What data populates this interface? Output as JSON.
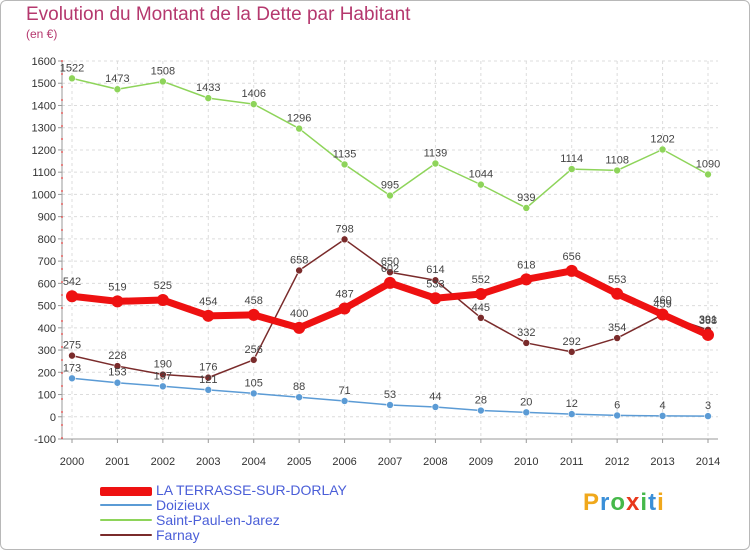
{
  "title": "Evolution du Montant de la Dette par Habitant",
  "subtitle": "(en €)",
  "logo": {
    "text": "Proxiti",
    "letters": [
      "P",
      "r",
      "o",
      "x",
      "i",
      "t",
      "i"
    ],
    "colors": [
      "#f0a81c",
      "#3a8fd8",
      "#46b84a",
      "#e8381c",
      "#46b84a",
      "#3a8fd8",
      "#f0a81c"
    ]
  },
  "chart_data": {
    "type": "line",
    "x": [
      "2000",
      "2001",
      "2002",
      "2003",
      "2004",
      "2005",
      "2006",
      "2007",
      "2008",
      "2009",
      "2010",
      "2011",
      "2012",
      "2013",
      "2014"
    ],
    "ylim": [
      -100,
      1600
    ],
    "yticks": [
      "-100",
      "0",
      "100",
      "200",
      "300",
      "400",
      "500",
      "600",
      "700",
      "800",
      "900",
      "1000",
      "1100",
      "1200",
      "1300",
      "1400",
      "1500",
      "1600"
    ],
    "grid": true,
    "legend_position": "bottom-left",
    "series": [
      {
        "name": "LA TERRASSE-SUR-DORLAY",
        "color": "#ee1111",
        "width": 7,
        "marker": 6,
        "values": [
          542,
          519,
          525,
          454,
          458,
          400,
          487,
          602,
          533,
          552,
          618,
          656,
          553,
          460,
          368
        ],
        "labels": [
          "542",
          "519",
          "525",
          "454",
          "458",
          "400",
          "487",
          "602",
          "533",
          "552",
          "618",
          "656",
          "553",
          "460",
          "368"
        ]
      },
      {
        "name": "Doizieux",
        "color": "#5b9bd5",
        "width": 1.5,
        "marker": 3.5,
        "values": [
          173,
          153,
          137,
          121,
          105,
          88,
          71,
          53,
          44,
          28,
          20,
          12,
          6,
          4,
          3
        ],
        "labels": [
          "173",
          "153",
          "137",
          "121",
          "105",
          "88",
          "71",
          "53",
          "44",
          "28",
          "20",
          "12",
          "6",
          "4",
          "3"
        ]
      },
      {
        "name": "Saint-Paul-en-Jarez",
        "color": "#8ed45a",
        "width": 1.5,
        "marker": 3.5,
        "values": [
          1522,
          1473,
          1508,
          1433,
          1406,
          1296,
          1135,
          995,
          1139,
          1044,
          939,
          1114,
          1108,
          1202,
          1090
        ],
        "labels": [
          "1522",
          "1473",
          "1508",
          "1433",
          "1406",
          "1296",
          "1135",
          "995",
          "1139",
          "1044",
          "939",
          "1114",
          "1108",
          "1202",
          "1090"
        ]
      },
      {
        "name": "Farnay",
        "color": "#7a2b2b",
        "width": 1.5,
        "marker": 3.5,
        "values": [
          275,
          228,
          190,
          176,
          256,
          658,
          798,
          650,
          614,
          445,
          332,
          292,
          354,
          459,
          391
        ],
        "labels": [
          "275",
          "228",
          "190",
          "176",
          "256",
          "658",
          "798",
          "650",
          "614",
          "445",
          "332",
          "292",
          "354",
          "459",
          "391"
        ]
      }
    ]
  }
}
